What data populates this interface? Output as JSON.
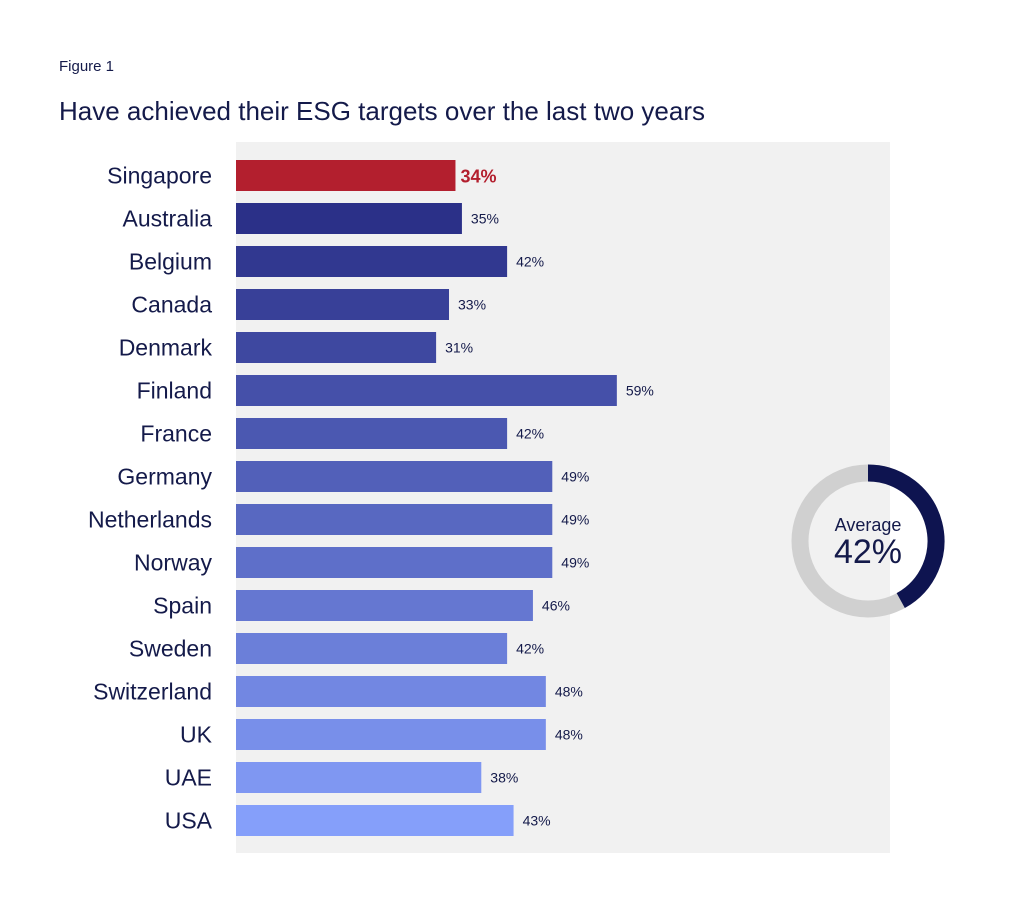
{
  "figure_label": "Figure 1",
  "chart_data": {
    "type": "bar",
    "orientation": "horizontal",
    "title": "Have achieved their ESG targets over the last two years",
    "categories": [
      "Singapore",
      "Australia",
      "Belgium",
      "Canada",
      "Denmark",
      "Finland",
      "France",
      "Germany",
      "Netherlands",
      "Norway",
      "Spain",
      "Sweden",
      "Switzerland",
      "UK",
      "UAE",
      "USA"
    ],
    "values": [
      34,
      35,
      42,
      33,
      31,
      59,
      42,
      49,
      49,
      49,
      46,
      42,
      48,
      48,
      38,
      43
    ],
    "value_labels": [
      "34%",
      "35%",
      "42%",
      "33%",
      "31%",
      "59%",
      "42%",
      "49%",
      "49%",
      "49%",
      "46%",
      "42%",
      "48%",
      "48%",
      "38%",
      "43%"
    ],
    "highlight_category": "Singapore",
    "xlim": [
      0,
      100
    ],
    "grid": false,
    "colors": {
      "highlight": "#b31f2e",
      "gradient_start": "#2b3088",
      "gradient_end": "#859ffa",
      "plot_background": "#f1f1f1"
    },
    "average": {
      "label": "Average",
      "value": 42,
      "value_label": "42%",
      "colors": {
        "filled": "#0e1450",
        "remainder": "#d0d0d0"
      }
    }
  }
}
